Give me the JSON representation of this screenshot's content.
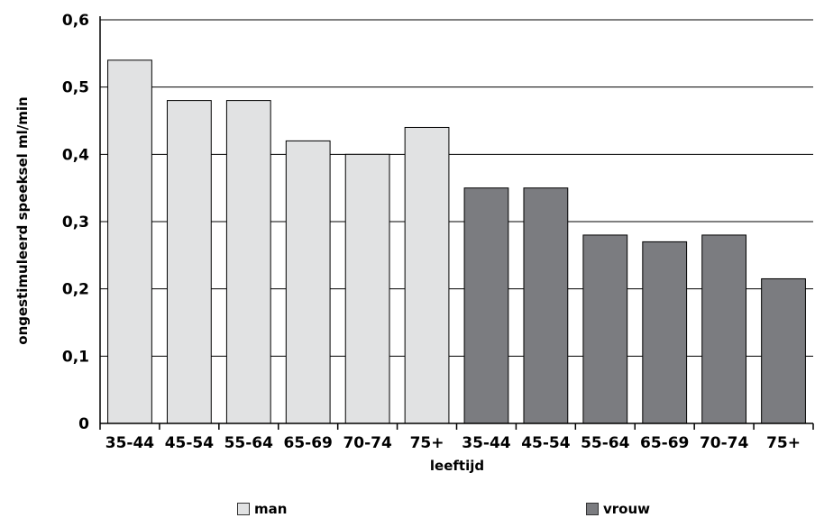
{
  "chart_data": {
    "type": "bar",
    "title": "",
    "xlabel": "leeftijd",
    "ylabel": "ongestimuleerd speeksel ml/min",
    "ylim": [
      0,
      0.6
    ],
    "yticks": [
      {
        "value": 0,
        "label": "0"
      },
      {
        "value": 0.1,
        "label": "0,1"
      },
      {
        "value": 0.2,
        "label": "0,2"
      },
      {
        "value": 0.3,
        "label": "0,3"
      },
      {
        "value": 0.4,
        "label": "0,4"
      },
      {
        "value": 0.5,
        "label": "0,5"
      },
      {
        "value": 0.6,
        "label": "0,6"
      }
    ],
    "grid": true,
    "legend_position": "bottom",
    "categories": [
      "35-44",
      "45-54",
      "55-64",
      "65-69",
      "70-74",
      "75+",
      "35-44",
      "45-54",
      "55-64",
      "65-69",
      "70-74",
      "75+"
    ],
    "series": [
      {
        "name": "man",
        "color": "#e1e2e3",
        "values": [
          0.54,
          0.48,
          0.48,
          0.42,
          0.4,
          0.44,
          null,
          null,
          null,
          null,
          null,
          null
        ]
      },
      {
        "name": "vrouw",
        "color": "#7b7c80",
        "values": [
          null,
          null,
          null,
          null,
          null,
          null,
          0.35,
          0.35,
          0.28,
          0.27,
          0.28,
          0.215
        ]
      }
    ]
  }
}
